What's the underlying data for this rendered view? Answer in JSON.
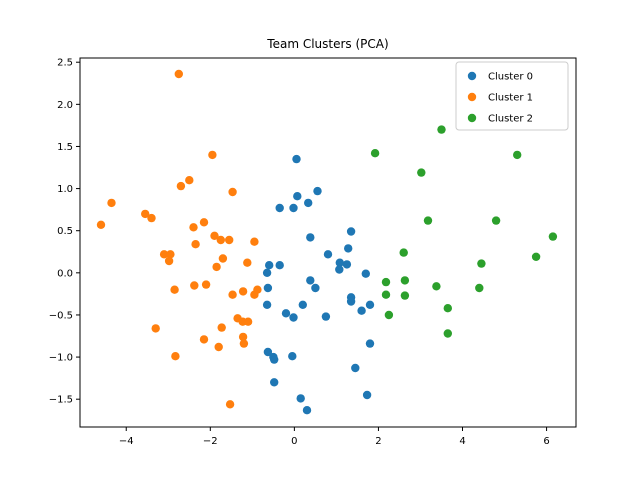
{
  "chart_data": {
    "type": "scatter",
    "title": "Team Clusters (PCA)",
    "xlabel": "",
    "ylabel": "",
    "xlim": [
      -5.1,
      6.7
    ],
    "ylim": [
      -1.83,
      2.55
    ],
    "xticks": [
      -4,
      -2,
      0,
      2,
      4,
      6
    ],
    "xtick_labels": [
      "−4",
      "−2",
      "0",
      "2",
      "4",
      "6"
    ],
    "yticks": [
      -1.5,
      -1.0,
      -0.5,
      0.0,
      0.5,
      1.0,
      1.5,
      2.0,
      2.5
    ],
    "ytick_labels": [
      "−1.5",
      "−1.0",
      "−0.5",
      "0.0",
      "0.5",
      "1.0",
      "1.5",
      "2.0",
      "2.5"
    ],
    "grid": false,
    "legend": "top-right",
    "series": [
      {
        "name": "Cluster 0",
        "color": "#1f77b4",
        "points": [
          [
            0.05,
            1.35
          ],
          [
            0.55,
            0.97
          ],
          [
            0.07,
            0.91
          ],
          [
            0.33,
            0.83
          ],
          [
            -0.35,
            0.77
          ],
          [
            -0.02,
            0.77
          ],
          [
            1.35,
            0.49
          ],
          [
            0.38,
            0.42
          ],
          [
            1.28,
            0.29
          ],
          [
            0.8,
            0.22
          ],
          [
            1.08,
            0.12
          ],
          [
            1.25,
            0.1
          ],
          [
            -0.6,
            0.09
          ],
          [
            -0.35,
            0.09
          ],
          [
            1.07,
            0.04
          ],
          [
            -0.65,
            0.0
          ],
          [
            1.7,
            -0.01
          ],
          [
            0.38,
            -0.09
          ],
          [
            -0.63,
            -0.18
          ],
          [
            0.5,
            -0.18
          ],
          [
            1.35,
            -0.29
          ],
          [
            1.35,
            -0.34
          ],
          [
            -0.65,
            -0.38
          ],
          [
            0.2,
            -0.38
          ],
          [
            1.8,
            -0.38
          ],
          [
            1.6,
            -0.45
          ],
          [
            -0.2,
            -0.48
          ],
          [
            -0.02,
            -0.53
          ],
          [
            0.75,
            -0.52
          ],
          [
            1.8,
            -0.84
          ],
          [
            -0.63,
            -0.94
          ],
          [
            -0.5,
            -1.0
          ],
          [
            -0.05,
            -0.99
          ],
          [
            -0.48,
            -1.03
          ],
          [
            1.45,
            -1.13
          ],
          [
            -0.48,
            -1.3
          ],
          [
            1.73,
            -1.45
          ],
          [
            0.15,
            -1.49
          ],
          [
            0.3,
            -1.63
          ]
        ]
      },
      {
        "name": "Cluster 1",
        "color": "#ff7f0e",
        "points": [
          [
            -2.75,
            2.36
          ],
          [
            -1.95,
            1.4
          ],
          [
            -2.5,
            1.1
          ],
          [
            -2.7,
            1.03
          ],
          [
            -1.47,
            0.96
          ],
          [
            -4.35,
            0.83
          ],
          [
            -3.55,
            0.7
          ],
          [
            -3.4,
            0.65
          ],
          [
            -2.15,
            0.6
          ],
          [
            -4.6,
            0.57
          ],
          [
            -2.4,
            0.54
          ],
          [
            -1.9,
            0.44
          ],
          [
            -1.75,
            0.39
          ],
          [
            -1.55,
            0.39
          ],
          [
            -0.95,
            0.37
          ],
          [
            -2.35,
            0.34
          ],
          [
            -3.1,
            0.22
          ],
          [
            -2.95,
            0.22
          ],
          [
            -2.98,
            0.14
          ],
          [
            -1.7,
            0.17
          ],
          [
            -1.12,
            0.12
          ],
          [
            -1.85,
            0.07
          ],
          [
            -2.38,
            -0.15
          ],
          [
            -2.1,
            -0.14
          ],
          [
            -2.85,
            -0.2
          ],
          [
            -0.88,
            -0.2
          ],
          [
            -1.22,
            -0.22
          ],
          [
            -0.95,
            -0.26
          ],
          [
            -1.47,
            -0.26
          ],
          [
            -1.35,
            -0.54
          ],
          [
            -1.23,
            -0.58
          ],
          [
            -1.1,
            -0.58
          ],
          [
            -3.3,
            -0.66
          ],
          [
            -1.73,
            -0.65
          ],
          [
            -1.22,
            -0.76
          ],
          [
            -2.15,
            -0.79
          ],
          [
            -1.2,
            -0.84
          ],
          [
            -1.8,
            -0.88
          ],
          [
            -2.83,
            -0.99
          ],
          [
            -1.53,
            -1.56
          ]
        ]
      },
      {
        "name": "Cluster 2",
        "color": "#2ca02c",
        "points": [
          [
            3.5,
            1.7
          ],
          [
            1.92,
            1.42
          ],
          [
            5.3,
            1.4
          ],
          [
            3.02,
            1.19
          ],
          [
            3.18,
            0.62
          ],
          [
            4.8,
            0.62
          ],
          [
            6.15,
            0.43
          ],
          [
            2.6,
            0.24
          ],
          [
            5.75,
            0.19
          ],
          [
            4.45,
            0.11
          ],
          [
            2.18,
            -0.11
          ],
          [
            2.63,
            -0.09
          ],
          [
            3.38,
            -0.16
          ],
          [
            4.4,
            -0.18
          ],
          [
            2.18,
            -0.26
          ],
          [
            2.63,
            -0.27
          ],
          [
            3.65,
            -0.42
          ],
          [
            2.25,
            -0.5
          ],
          [
            3.65,
            -0.72
          ]
        ]
      }
    ]
  }
}
